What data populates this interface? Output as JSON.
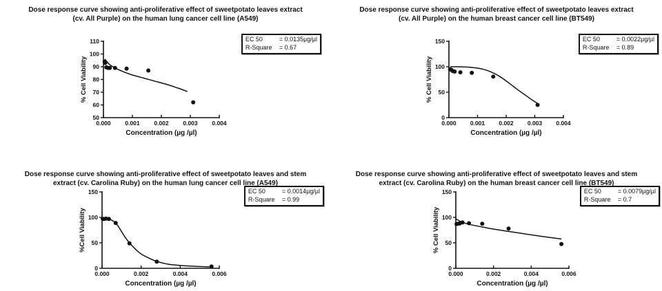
{
  "chart_data": [
    {
      "type": "scatter",
      "title_line1": "Dose response curve showing anti-proliferative effect of sweetpotato leaves extract",
      "title_line2": "(cv. All Purple) on the human lung cancer cell line (A549)",
      "xlabel": "Concentration (µg /µl)",
      "ylabel": "% Cell Viability",
      "xlim": [
        0,
        0.004
      ],
      "ylim": [
        50,
        110
      ],
      "xticks": [
        0,
        0.001,
        0.002,
        0.003,
        0.004
      ],
      "xtick_labels": [
        "0.000",
        "0.001",
        "0.002",
        "0.003",
        "0.004"
      ],
      "yticks": [
        50,
        60,
        70,
        80,
        90,
        100,
        110
      ],
      "legend": {
        "ec50_label": "EC 50",
        "ec50_value": "= 0.0135µg/µl",
        "rsq_label": "R-Square",
        "rsq_value": "= 0.67"
      },
      "points": [
        [
          4e-05,
          94
        ],
        [
          6e-05,
          93
        ],
        [
          0.0001,
          89.5
        ],
        [
          0.00016,
          89
        ],
        [
          0.00022,
          89
        ],
        [
          0.0004,
          89
        ],
        [
          0.0008,
          88.5
        ],
        [
          0.00155,
          87
        ],
        [
          0.0031,
          62
        ]
      ],
      "curve": [
        [
          5e-05,
          96
        ],
        [
          0.0002,
          92
        ],
        [
          0.0004,
          89
        ],
        [
          0.0007,
          86
        ],
        [
          0.001,
          83.5
        ],
        [
          0.0014,
          81
        ],
        [
          0.0018,
          78.5
        ],
        [
          0.0022,
          76
        ],
        [
          0.0026,
          73
        ],
        [
          0.0029,
          70.5
        ]
      ]
    },
    {
      "type": "scatter",
      "title_line1": "Dose response curve showing anti-proliferative effect of sweetpotato leaves extract",
      "title_line2": "(cv. All Purple) on the human breast cancer cell line (BT549)",
      "xlabel": "Concentration (µg /µl)",
      "ylabel": "% Cell Viability",
      "xlim": [
        0,
        0.004
      ],
      "ylim": [
        0,
        150
      ],
      "xticks": [
        0,
        0.001,
        0.002,
        0.003,
        0.004
      ],
      "xtick_labels": [
        "0.000",
        "0.001",
        "0.002",
        "0.003",
        "0.004"
      ],
      "yticks": [
        0,
        50,
        100,
        150
      ],
      "legend": {
        "ec50_label": "EC 50",
        "ec50_value": "= 0.0022µg/µl",
        "rsq_label": "R-Square",
        "rsq_value": "= 0.89"
      },
      "points": [
        [
          4e-05,
          95
        ],
        [
          8e-05,
          94
        ],
        [
          0.00013,
          91.5
        ],
        [
          0.0002,
          90.5
        ],
        [
          0.0004,
          89
        ],
        [
          0.0008,
          88
        ],
        [
          0.00155,
          80.5
        ],
        [
          0.0031,
          25
        ]
      ],
      "curve": [
        [
          5e-05,
          100
        ],
        [
          0.0003,
          100
        ],
        [
          0.0006,
          99.5
        ],
        [
          0.0009,
          98
        ],
        [
          0.0012,
          95
        ],
        [
          0.0015,
          89
        ],
        [
          0.0018,
          80
        ],
        [
          0.0021,
          68
        ],
        [
          0.0024,
          55
        ],
        [
          0.0027,
          43
        ],
        [
          0.0029,
          35
        ],
        [
          0.0031,
          28
        ]
      ]
    },
    {
      "type": "scatter",
      "title_line1": "Dose response curve showing anti-proliferative effect of sweetpotato leaves and stem",
      "title_line2": "extract (cv. Carolina Ruby) on the human lung cancer cell line (A549)",
      "xlabel": "Concentration (µg /µl)",
      "ylabel": "%Cell Viability",
      "xlim": [
        0,
        0.006
      ],
      "ylim": [
        0,
        150
      ],
      "xticks": [
        0,
        0.002,
        0.004,
        0.006
      ],
      "xtick_labels": [
        "0.000",
        "0.002",
        "0.004",
        "0.006"
      ],
      "yticks": [
        0,
        50,
        100,
        150
      ],
      "legend": {
        "ec50_label": "EC 50",
        "ec50_value": "= 0.0014µg/µl",
        "rsq_label": "R-Square",
        "rsq_value": "= 0.99"
      },
      "points": [
        [
          4e-05,
          97
        ],
        [
          0.0001,
          97
        ],
        [
          0.0002,
          97.5
        ],
        [
          0.00035,
          97
        ],
        [
          0.0007,
          89
        ],
        [
          0.0014,
          49
        ],
        [
          0.0028,
          13
        ],
        [
          0.0056,
          3.5
        ]
      ],
      "curve": [
        [
          5e-05,
          98
        ],
        [
          0.0002,
          97.5
        ],
        [
          0.0004,
          96
        ],
        [
          0.0006,
          92
        ],
        [
          0.0008,
          84
        ],
        [
          0.001,
          72
        ],
        [
          0.0012,
          60
        ],
        [
          0.0014,
          50
        ],
        [
          0.0017,
          38
        ],
        [
          0.002,
          28
        ],
        [
          0.0024,
          20
        ],
        [
          0.0028,
          13.5
        ],
        [
          0.0034,
          8
        ],
        [
          0.0042,
          5
        ],
        [
          0.005,
          3.5
        ],
        [
          0.0057,
          2.5
        ]
      ]
    },
    {
      "type": "scatter",
      "title_line1": "Dose response curve showing anti-proliferative effect of sweetpotato leaves and stem",
      "title_line2": "extract (cv. Carolina Ruby) on the human breast cancer cell line (BT549)",
      "xlabel": "Concentration (µg /µl)",
      "ylabel": "% Cell Viability",
      "xlim": [
        0,
        0.006
      ],
      "ylim": [
        0,
        150
      ],
      "xticks": [
        0,
        0.002,
        0.004,
        0.006
      ],
      "xtick_labels": [
        "0.000",
        "0.002",
        "0.004",
        "0.006"
      ],
      "yticks": [
        0,
        50,
        100,
        150
      ],
      "legend": {
        "ec50_label": "EC 50",
        "ec50_value": "= 0.0079µg/µl",
        "rsq_label": "R-Square",
        "rsq_value": "= 0.7"
      },
      "points": [
        [
          4e-05,
          87
        ],
        [
          0.0001,
          87.5
        ],
        [
          0.0002,
          88
        ],
        [
          0.00035,
          90
        ],
        [
          0.0007,
          88.5
        ],
        [
          0.0014,
          87.5
        ],
        [
          0.0028,
          78
        ],
        [
          0.0056,
          47.5
        ]
      ],
      "curve": [
        [
          2e-05,
          97
        ],
        [
          0.0003,
          91
        ],
        [
          0.0006,
          87.5
        ],
        [
          0.001,
          84
        ],
        [
          0.0015,
          80.5
        ],
        [
          0.002,
          77
        ],
        [
          0.0027,
          73
        ],
        [
          0.0035,
          68.5
        ],
        [
          0.0045,
          63
        ],
        [
          0.0056,
          57.5
        ]
      ]
    }
  ],
  "figure": {
    "plot_color": "#111111",
    "background": "#ffffff"
  }
}
